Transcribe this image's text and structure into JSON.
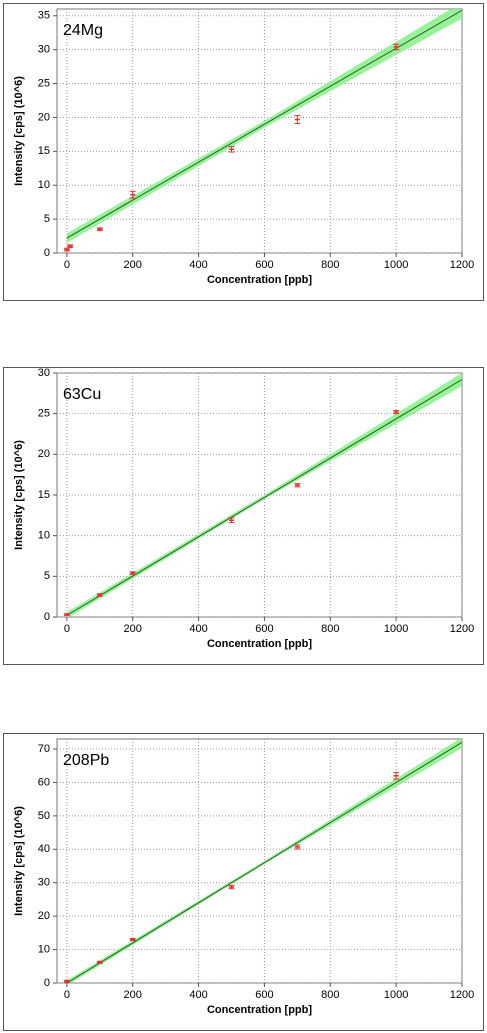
{
  "chart_data": [
    {
      "type": "scatter",
      "label": "24Mg",
      "xlabel": "Concentration [ppb]",
      "ylabel": "Intensity [cps] (10^6)",
      "x": [
        0,
        10,
        100,
        200,
        500,
        700,
        1000
      ],
      "values": [
        0.5,
        1.0,
        3.5,
        8.6,
        15.3,
        19.7,
        30.4
      ],
      "errors": [
        0.2,
        0.2,
        0.2,
        0.5,
        0.4,
        0.6,
        0.4
      ],
      "color": "#e03030",
      "fit": {
        "x": [
          0,
          1200
        ],
        "values": [
          2.2,
          35.8
        ],
        "color": "#2a5e2a"
      },
      "band": {
        "x": [
          0,
          600,
          1200
        ],
        "lower": [
          1.5,
          18.5,
          34.6
        ],
        "upper": [
          2.9,
          19.5,
          37
        ],
        "color": "#86f086"
      },
      "xlim": [
        -30,
        1200
      ],
      "xticks": [
        0,
        200,
        400,
        600,
        800,
        1000,
        1200
      ],
      "ylim": [
        0,
        36
      ],
      "yticks": [
        0,
        5,
        10,
        15,
        20,
        25,
        30,
        35
      ],
      "grid": true
    },
    {
      "type": "scatter",
      "label": "63Cu",
      "xlabel": "Concentration [ppb]",
      "ylabel": "Intensity [cps] (10^6)",
      "x": [
        0,
        100,
        200,
        500,
        700,
        1000
      ],
      "values": [
        0.3,
        2.7,
        5.4,
        11.9,
        16.2,
        25.2
      ],
      "errors": [
        0.1,
        0.15,
        0.15,
        0.3,
        0.2,
        0.2
      ],
      "color": "#e03030",
      "fit": {
        "x": [
          0,
          1200
        ],
        "values": [
          0.2,
          29.2
        ],
        "color": "#2a5e2a"
      },
      "band": {
        "x": [
          0,
          600,
          1200
        ],
        "lower": [
          -0.2,
          14.5,
          28.4
        ],
        "upper": [
          0.6,
          15.0,
          30.0
        ],
        "color": "#86f086"
      },
      "xlim": [
        -30,
        1200
      ],
      "xticks": [
        0,
        200,
        400,
        600,
        800,
        1000,
        1200
      ],
      "ylim": [
        0,
        30
      ],
      "yticks": [
        0,
        5,
        10,
        15,
        20,
        25,
        30
      ],
      "grid": true
    },
    {
      "type": "scatter",
      "label": "208Pb",
      "xlabel": "Concentration [ppb]",
      "ylabel": "Intensity [cps] (10^6)",
      "x": [
        0,
        100,
        200,
        500,
        700,
        1000
      ],
      "values": [
        0.5,
        6.2,
        13.0,
        28.7,
        40.7,
        62.0
      ],
      "errors": [
        0.3,
        0.3,
        0.3,
        0.5,
        0.6,
        1.0
      ],
      "color": "#e03030",
      "fit": {
        "x": [
          0,
          1200
        ],
        "values": [
          0,
          72
        ],
        "color": "#2a5e2a"
      },
      "band": {
        "x": [
          0,
          600,
          1200
        ],
        "lower": [
          -0.8,
          35.6,
          70.3
        ],
        "upper": [
          0.8,
          36.5,
          73.5
        ],
        "color": "#86f086"
      },
      "xlim": [
        -30,
        1200
      ],
      "xticks": [
        0,
        200,
        400,
        600,
        800,
        1000,
        1200
      ],
      "ylim": [
        0,
        73
      ],
      "yticks": [
        0,
        10,
        20,
        30,
        40,
        50,
        60,
        70
      ],
      "grid": true
    }
  ]
}
